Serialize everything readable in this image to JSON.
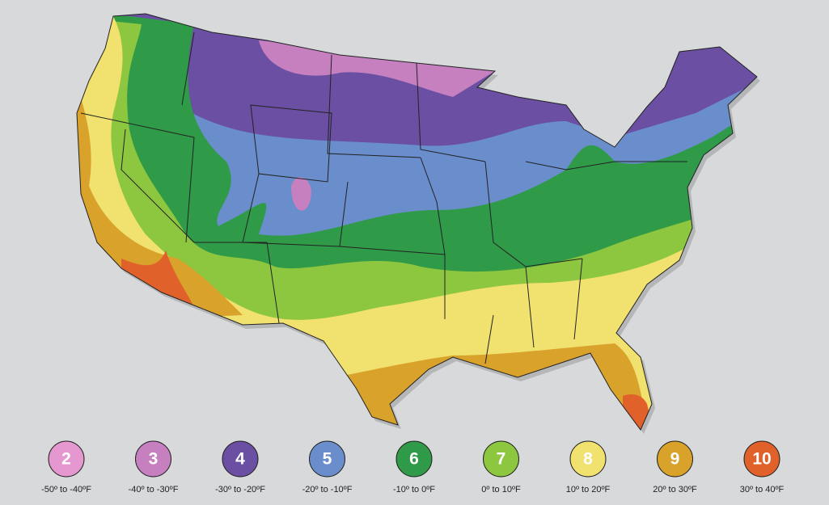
{
  "legend": [
    {
      "zone": "2",
      "range": "-50º to -40ºF",
      "color": "#e597cf"
    },
    {
      "zone": "3",
      "range": "-40º to -30ºF",
      "color": "#c680c0"
    },
    {
      "zone": "4",
      "range": "-30º to -20ºF",
      "color": "#6b4fa2"
    },
    {
      "zone": "5",
      "range": "-20º to -10ºF",
      "color": "#6a8dcc"
    },
    {
      "zone": "6",
      "range": "-10º to 0ºF",
      "color": "#2f9a48"
    },
    {
      "zone": "7",
      "range": "0º to 10ºF",
      "color": "#8dc63f"
    },
    {
      "zone": "8",
      "range": "10º to 20ºF",
      "color": "#f1e16f"
    },
    {
      "zone": "9",
      "range": "20º to 30ºF",
      "color": "#d9a22b"
    },
    {
      "zone": "10",
      "range": "30º to 40ºF",
      "color": "#e0622a"
    }
  ]
}
